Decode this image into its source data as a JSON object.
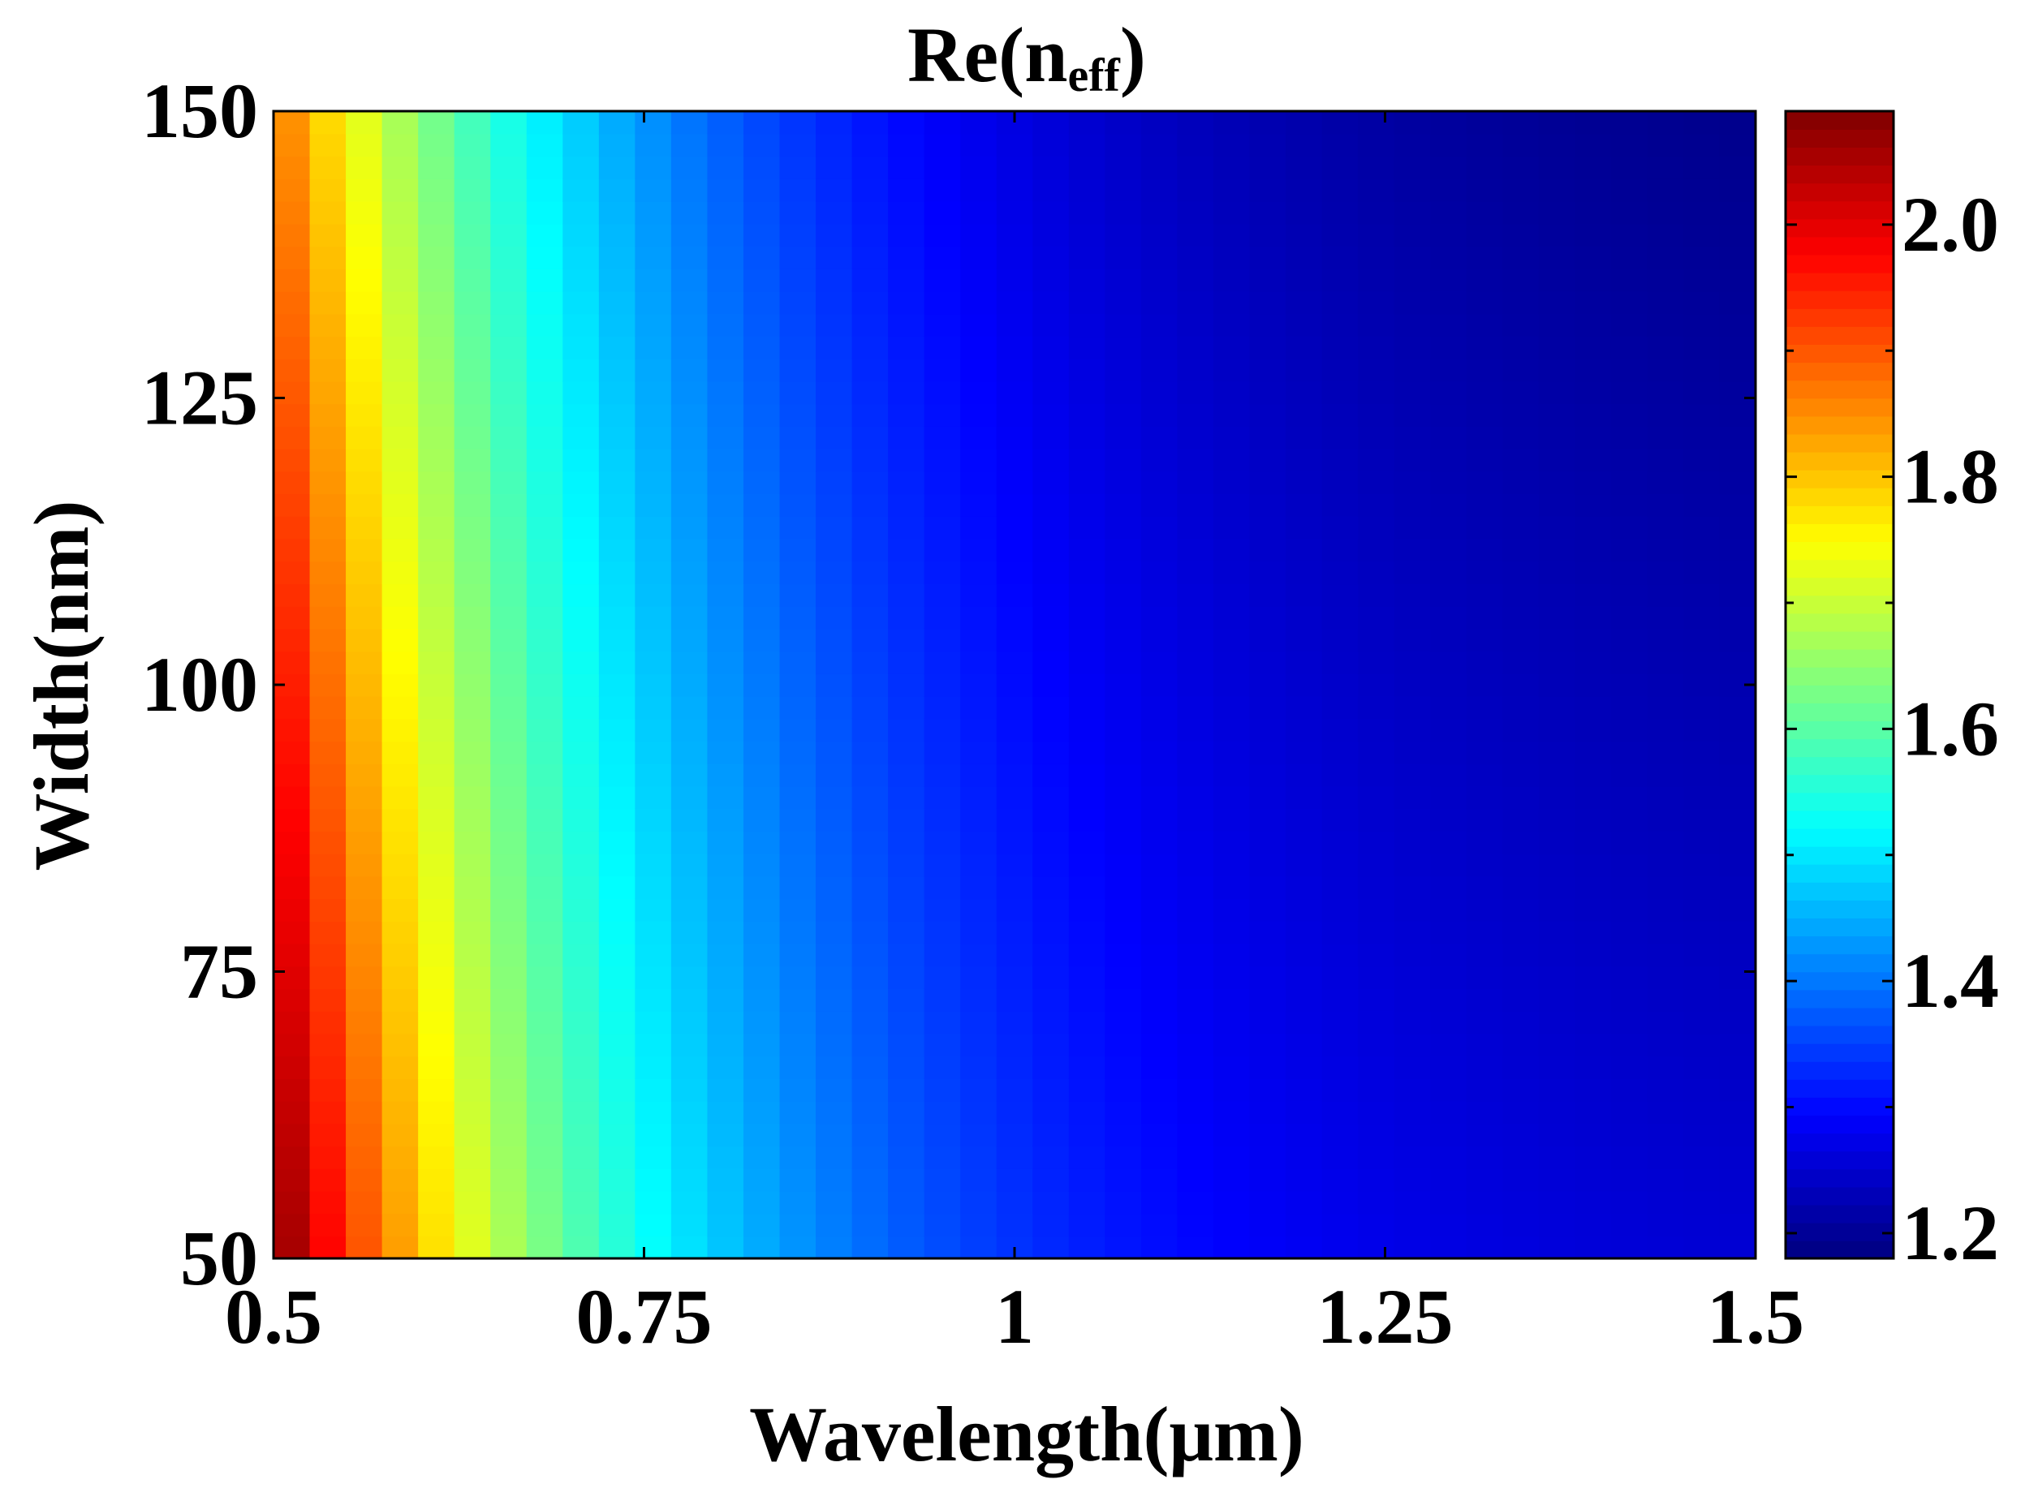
{
  "chart_data": {
    "type": "heatmap",
    "title": {
      "main": "Re(n",
      "sub": "eff",
      "close": ")"
    },
    "xlabel": "Wavelength(μm)",
    "ylabel": "Width(nm)",
    "xlim": [
      0.5,
      1.5
    ],
    "ylim": [
      50,
      150
    ],
    "x_ticks": [
      0.5,
      0.75,
      1,
      1.25,
      1.5
    ],
    "x_tick_labels": [
      "0.5",
      "0.75",
      "1",
      "1.25",
      "1.5"
    ],
    "y_ticks": [
      50,
      75,
      100,
      125,
      150
    ],
    "y_tick_labels": [
      "50",
      "75",
      "100",
      "125",
      "150"
    ],
    "colorbar": {
      "colormap": "jet",
      "range": [
        1.18,
        2.09
      ],
      "ticks": [
        1.2,
        1.4,
        1.6,
        1.8,
        2.0
      ],
      "tick_labels": [
        "1.2",
        "1.4",
        "1.6",
        "1.8",
        "2.0"
      ],
      "minor_ticks": [
        1.3,
        1.5,
        1.7,
        1.9
      ]
    },
    "grid": false,
    "x_cells": 41,
    "y_cells": 51,
    "z_model": {
      "description": "Re(n_eff) estimated over wavelength and width",
      "at_points": [
        {
          "wavelength": 0.5,
          "width": 50,
          "value": 2.08
        },
        {
          "wavelength": 0.5,
          "width": 150,
          "value": 1.86
        },
        {
          "wavelength": 0.6,
          "width": 50,
          "value": 1.78
        },
        {
          "wavelength": 0.75,
          "width": 100,
          "value": 1.48
        },
        {
          "wavelength": 1.0,
          "width": 100,
          "value": 1.28
        },
        {
          "wavelength": 1.5,
          "width": 50,
          "value": 1.22
        },
        {
          "wavelength": 1.5,
          "width": 150,
          "value": 1.19
        }
      ]
    }
  }
}
